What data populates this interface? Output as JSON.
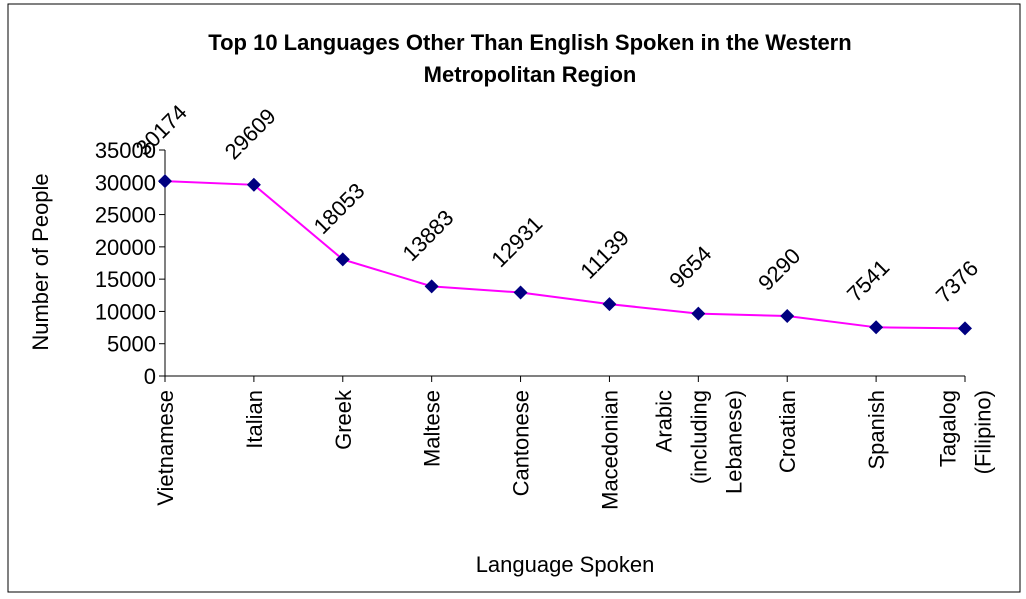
{
  "chart_data": {
    "type": "line",
    "title": "Top 10 Languages Other Than English Spoken in the Western Metropolitan Region",
    "x_label": "Language Spoken",
    "y_label": "Number of People",
    "categories": [
      "Vietnamese",
      "Italian",
      "Greek",
      "Maltese",
      "Cantonese",
      "Macedonian",
      "Arabic (including Lebanese)",
      "Croatian",
      "Spanish",
      "Tagalog (Filipino)"
    ],
    "series": [
      {
        "name": "Number of People",
        "color": "#ff00ff",
        "marker_color": "#000080",
        "values": [
          30174,
          29609,
          18053,
          13883,
          12931,
          11139,
          9654,
          9290,
          7541,
          7376
        ]
      }
    ],
    "ylim": [
      0,
      35000
    ],
    "yticks": [
      0,
      5000,
      10000,
      15000,
      20000,
      25000,
      30000,
      35000
    ]
  }
}
